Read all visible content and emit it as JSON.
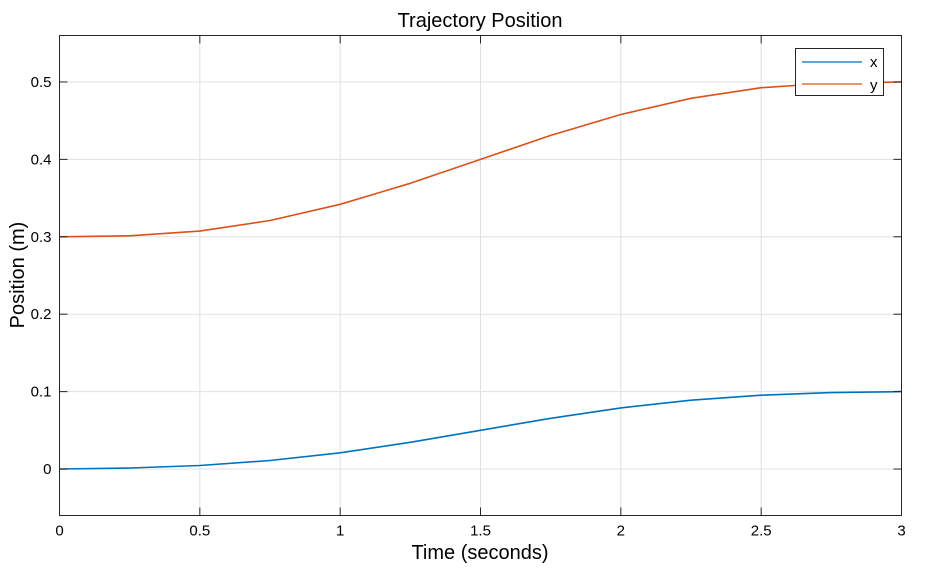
{
  "chart_data": {
    "type": "line",
    "title": "Trajectory Position",
    "xlabel": "Time (seconds)",
    "ylabel": "Position (m)",
    "xlim": [
      0,
      3
    ],
    "ylim": [
      -0.06,
      0.56
    ],
    "xticks": [
      0,
      0.5,
      1,
      1.5,
      2,
      2.5,
      3
    ],
    "xtick_labels": [
      "0",
      "0.5",
      "1",
      "1.5",
      "2",
      "2.5",
      "3"
    ],
    "yticks": [
      0,
      0.1,
      0.2,
      0.3,
      0.4,
      0.5
    ],
    "ytick_labels": [
      "0",
      "0.1",
      "0.2",
      "0.3",
      "0.4",
      "0.5"
    ],
    "grid": true,
    "legend_position": "top-right",
    "x": [
      0,
      0.25,
      0.5,
      0.75,
      1,
      1.25,
      1.5,
      1.75,
      2,
      2.25,
      2.5,
      2.75,
      3
    ],
    "series": [
      {
        "name": "x",
        "color": "#0072BD",
        "values": [
          0,
          0.0013,
          0.0046,
          0.0111,
          0.021,
          0.0345,
          0.05,
          0.0655,
          0.079,
          0.0889,
          0.0954,
          0.0987,
          0.1
        ]
      },
      {
        "name": "y",
        "color": "#D95319",
        "values": [
          0.3,
          0.3013,
          0.3074,
          0.3211,
          0.342,
          0.3691,
          0.4,
          0.4309,
          0.458,
          0.4789,
          0.4926,
          0.4987,
          0.5
        ]
      }
    ]
  }
}
